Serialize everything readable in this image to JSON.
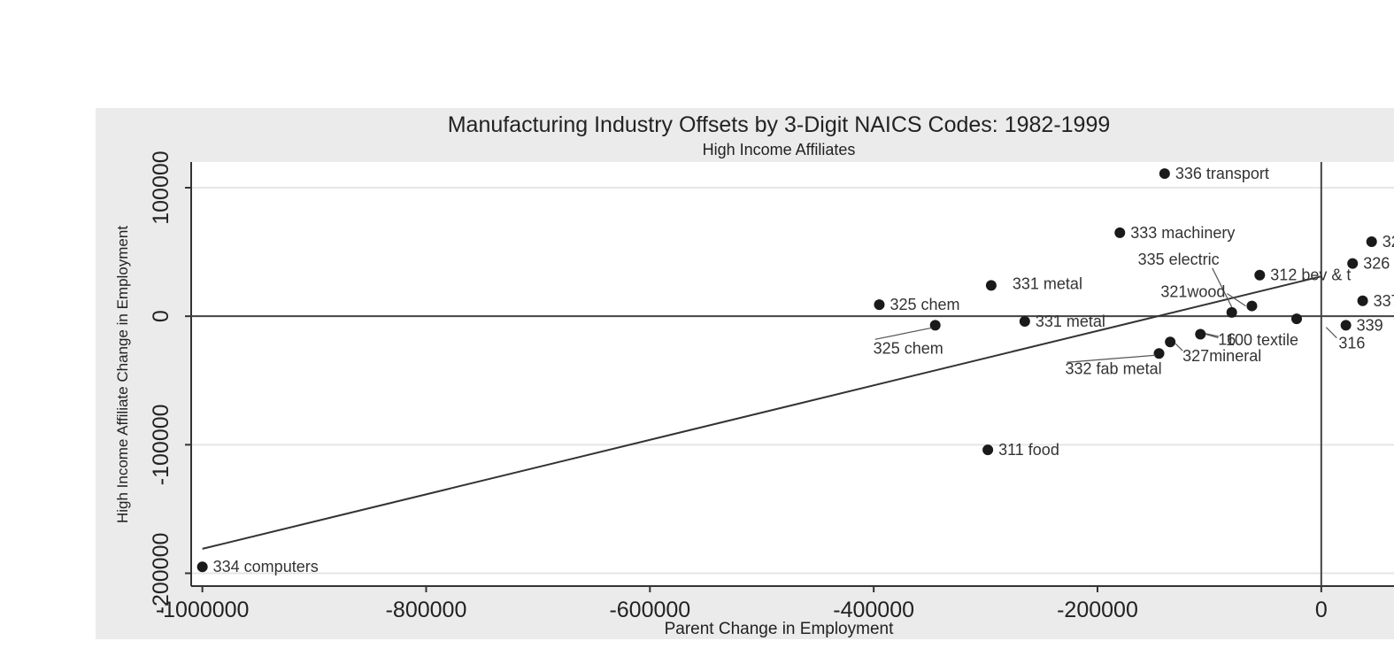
{
  "chart_data": {
    "type": "scatter",
    "title": "Manufacturing Industry Offsets by 3-Digit NAICS Codes: 1982-1999",
    "subtitle": "High Income Affiliates",
    "xlabel": "Parent Change in Employment",
    "ylabel": "High Income Affiliate Change in Employment",
    "xlim": [
      -1010000,
      65000
    ],
    "ylim": [
      -210000,
      120000
    ],
    "x_ticks": [
      {
        "value": -1000000,
        "label": "-1000000"
      },
      {
        "value": -800000,
        "label": "-800000"
      },
      {
        "value": -600000,
        "label": "-600000"
      },
      {
        "value": -400000,
        "label": "-400000"
      },
      {
        "value": -200000,
        "label": "-200000"
      },
      {
        "value": 0,
        "label": "0"
      }
    ],
    "y_ticks": [
      {
        "value": 100000,
        "label": "100000"
      },
      {
        "value": 0,
        "label": "0"
      },
      {
        "value": -100000,
        "label": "-100000"
      },
      {
        "value": -200000,
        "label": "-200000"
      }
    ],
    "grid": true,
    "reference_lines": {
      "x": 0,
      "y": 0
    },
    "fit_line": {
      "x": [
        -1000000,
        0
      ],
      "y": [
        -181000,
        31000
      ]
    },
    "points": [
      {
        "x": -140000,
        "y": 111000,
        "label": "336 transport",
        "label_pos": "right"
      },
      {
        "x": -180000,
        "y": 65000,
        "label": "333 machinery",
        "label_pos": "right"
      },
      {
        "x": 45000,
        "y": 58000,
        "label": "32",
        "label_pos": "right"
      },
      {
        "x": 28000,
        "y": 41000,
        "label": "326",
        "label_pos": "right"
      },
      {
        "x": -55000,
        "y": 32000,
        "label": "312 bev & t",
        "label_pos": "right"
      },
      {
        "x": 37000,
        "y": 12000,
        "label": "337",
        "label_pos": "right"
      },
      {
        "x": -295000,
        "y": 24000,
        "label": "331 metal",
        "label_pos": "right-far"
      },
      {
        "x": -395000,
        "y": 9000,
        "label": "325 chem",
        "label_pos": "right"
      },
      {
        "x": -80000,
        "y": 3000,
        "label": "335 electric",
        "label_pos": "leader-up"
      },
      {
        "x": -62000,
        "y": 8000,
        "label": "321wood",
        "label_pos": "leader-left"
      },
      {
        "x": -345000,
        "y": -7000,
        "label": "325 chem",
        "label_pos": "leader-down"
      },
      {
        "x": -265000,
        "y": -4000,
        "label": "331 metal",
        "label_pos": "right"
      },
      {
        "x": -22000,
        "y": -2000,
        "label": "100 textile",
        "label_pos": "leader-down"
      },
      {
        "x": 22000,
        "y": -7000,
        "label": "339",
        "label_pos": "right"
      },
      {
        "x": -108000,
        "y": -14000,
        "label": "16",
        "label_pos": "leader-right"
      },
      {
        "x": -135000,
        "y": -20000,
        "label": "327mineral",
        "label_pos": "leader-right"
      },
      {
        "x": -145000,
        "y": -29000,
        "label": "332 fab metal",
        "label_pos": "leader-down"
      },
      {
        "x": -298000,
        "y": -104000,
        "label": "311 food",
        "label_pos": "right"
      },
      {
        "x": -1000000,
        "y": -195000,
        "label": "334 computers",
        "label_pos": "right"
      }
    ],
    "extra_labels": [
      {
        "text": "316",
        "x": 36000,
        "y": -21000
      }
    ]
  }
}
